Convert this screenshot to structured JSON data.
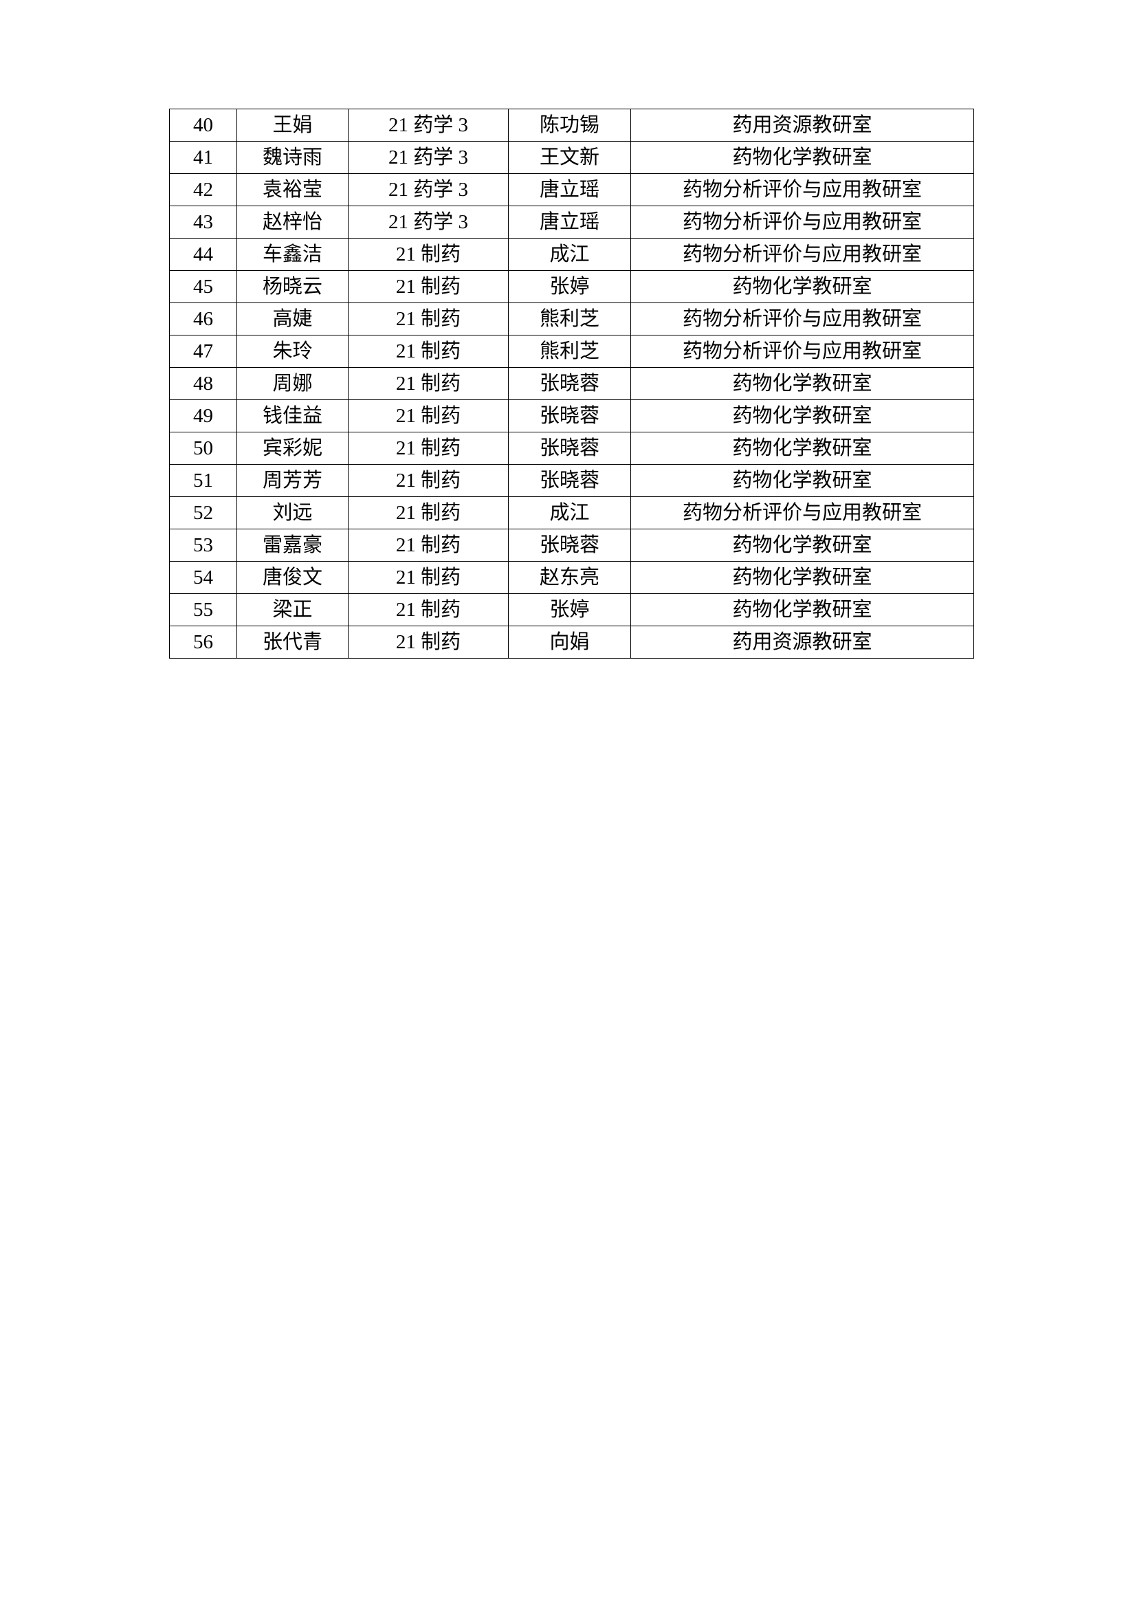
{
  "table": {
    "rows": [
      [
        "40",
        "王娟",
        "21 药学 3",
        "陈功锡",
        "药用资源教研室"
      ],
      [
        "41",
        "魏诗雨",
        "21 药学 3",
        "王文新",
        "药物化学教研室"
      ],
      [
        "42",
        "袁裕莹",
        "21 药学 3",
        "唐立瑶",
        "药物分析评价与应用教研室"
      ],
      [
        "43",
        "赵梓怡",
        "21 药学 3",
        "唐立瑶",
        "药物分析评价与应用教研室"
      ],
      [
        "44",
        "车鑫洁",
        "21 制药",
        "成江",
        "药物分析评价与应用教研室"
      ],
      [
        "45",
        "杨晓云",
        "21 制药",
        "张婷",
        "药物化学教研室"
      ],
      [
        "46",
        "高婕",
        "21 制药",
        "熊利芝",
        "药物分析评价与应用教研室"
      ],
      [
        "47",
        "朱玲",
        "21 制药",
        "熊利芝",
        "药物分析评价与应用教研室"
      ],
      [
        "48",
        "周娜",
        "21 制药",
        "张晓蓉",
        "药物化学教研室"
      ],
      [
        "49",
        "钱佳益",
        "21 制药",
        "张晓蓉",
        "药物化学教研室"
      ],
      [
        "50",
        "宾彩妮",
        "21 制药",
        "张晓蓉",
        "药物化学教研室"
      ],
      [
        "51",
        "周芳芳",
        "21 制药",
        "张晓蓉",
        "药物化学教研室"
      ],
      [
        "52",
        "刘远",
        "21 制药",
        "成江",
        "药物分析评价与应用教研室"
      ],
      [
        "53",
        "雷嘉豪",
        "21 制药",
        "张晓蓉",
        "药物化学教研室"
      ],
      [
        "54",
        "唐俊文",
        "21 制药",
        "赵东亮",
        "药物化学教研室"
      ],
      [
        "55",
        "梁正",
        "21 制药",
        "张婷",
        "药物化学教研室"
      ],
      [
        "56",
        "张代青",
        "21 制药",
        "向娟",
        "药用资源教研室"
      ]
    ]
  }
}
